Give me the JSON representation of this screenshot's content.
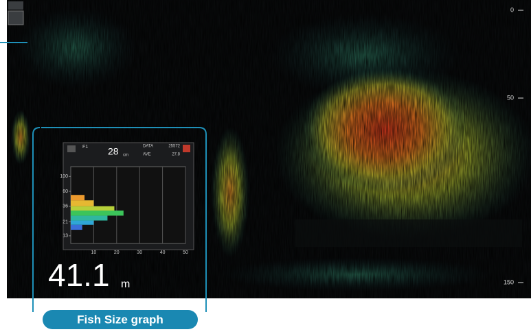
{
  "screen": {
    "depth_labels": [
      0,
      50,
      150
    ],
    "depth_value": "41.1",
    "depth_unit": "m",
    "caption": "Fish Size graph"
  },
  "panel": {
    "mode": "F1",
    "size": "28",
    "size_unit": "cm",
    "data_label": "DATA",
    "data_value": "25572",
    "ave_label": "AVE",
    "ave_value": "27.8"
  },
  "chart_data": {
    "type": "histogram",
    "orientation": "horizontal",
    "bins": [
      16,
      19,
      22,
      26,
      31,
      36,
      44,
      53
    ],
    "counts": [
      5,
      10,
      16,
      23,
      19,
      10,
      6
    ],
    "colors": [
      "#3a6fd8",
      "#2fa6d6",
      "#2fb6a0",
      "#3cc45a",
      "#b6d03a",
      "#e6b832",
      "#ec9a2e"
    ],
    "xlim": [
      0,
      50
    ],
    "xticks": [
      10,
      20,
      30,
      40,
      50
    ],
    "ylim": [
      10,
      140
    ],
    "yticks": [
      13,
      21,
      36,
      60,
      100
    ],
    "ylog": true,
    "grid": true
  }
}
